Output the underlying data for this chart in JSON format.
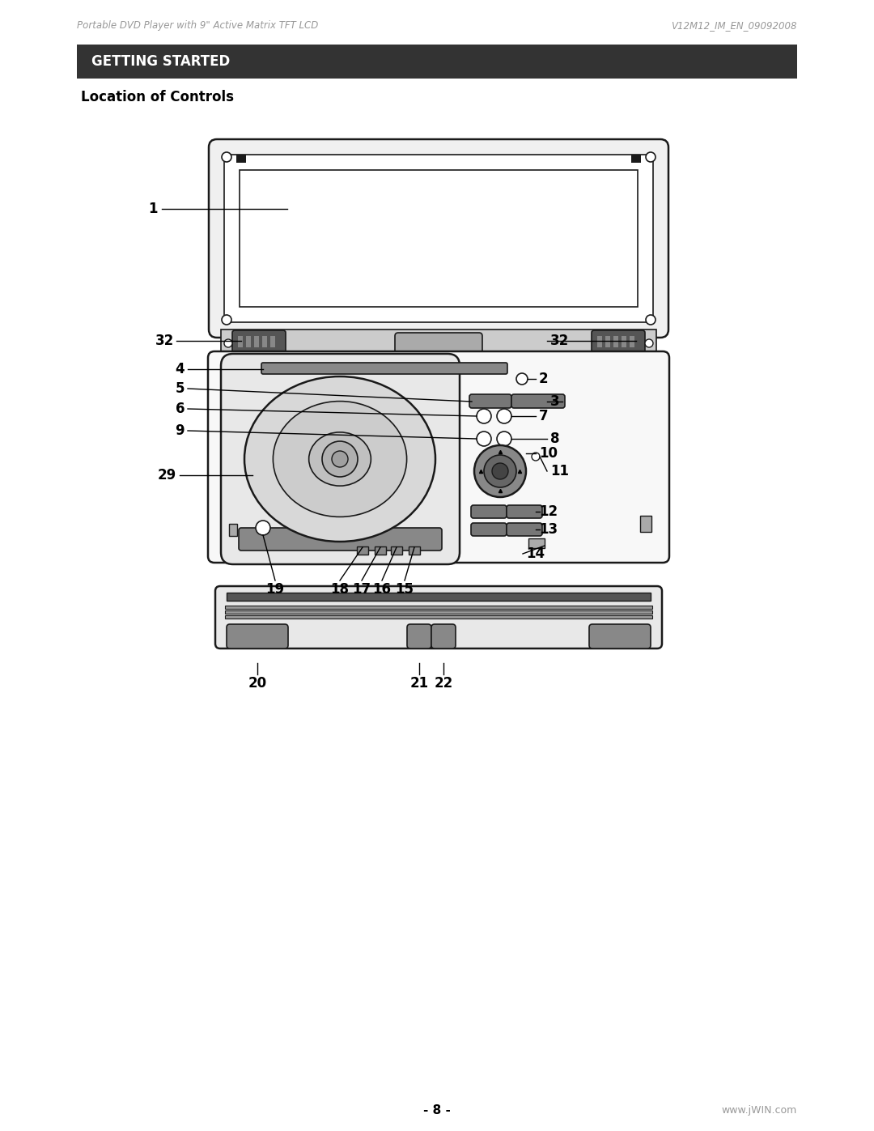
{
  "page_width": 10.8,
  "page_height": 13.97,
  "bg_color": "#ffffff",
  "header_left": "Portable DVD Player with 9\" Active Matrix TFT LCD",
  "header_right": "V12M12_IM_EN_09092008",
  "header_color": "#999999",
  "header_fontsize": 8.5,
  "banner_text": "GETTING STARTED",
  "banner_bg": "#333333",
  "banner_text_color": "#ffffff",
  "banner_fontsize": 12,
  "section_title": "Location of Controls",
  "section_fontsize": 12,
  "footer_center": "- 8 -",
  "footer_right": "www.jWIN.com",
  "footer_color": "#999999",
  "footer_fontsize": 9,
  "device_stroke": "#1a1a1a",
  "device_fill": "#f8f8f8",
  "screen_fill": "#ffffff",
  "label_fontsize": 12
}
